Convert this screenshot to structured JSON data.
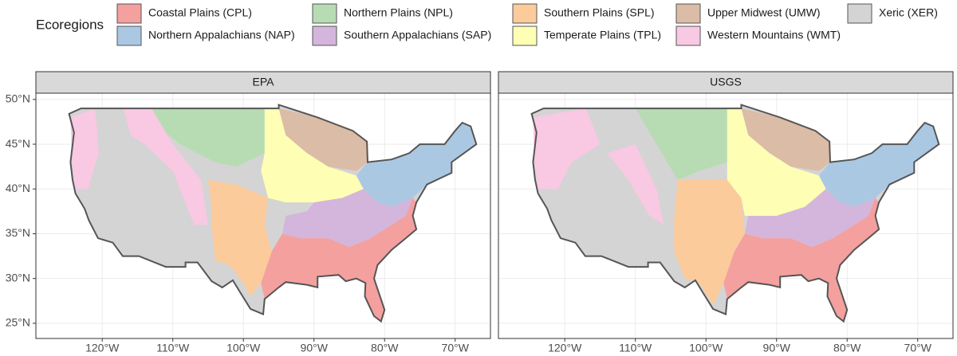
{
  "legend": {
    "title": "Ecoregions",
    "items": [
      {
        "label": "Coastal Plains (CPL)",
        "color": "#f4a09f"
      },
      {
        "label": "Northern Appalachians (NAP)",
        "color": "#abc8e3"
      },
      {
        "label": "Northern Plains (NPL)",
        "color": "#b7dcb3"
      },
      {
        "label": "Southern Appalachians (SAP)",
        "color": "#d4b5dc"
      },
      {
        "label": "Southern Plains (SPL)",
        "color": "#fccb9b"
      },
      {
        "label": "Temperate Plains (TPL)",
        "color": "#fefeb4"
      },
      {
        "label": "Upper Midwest (UMW)",
        "color": "#dbbca7"
      },
      {
        "label": "Western Mountains (WMT)",
        "color": "#f9c8e3"
      },
      {
        "label": "Xeric (XER)",
        "color": "#d4d4d4"
      }
    ]
  },
  "panels": [
    {
      "title": "EPA"
    },
    {
      "title": "USGS"
    }
  ],
  "axes": {
    "xlim": [
      -129.4,
      -65
    ],
    "ylim": [
      23.3,
      50.7
    ],
    "xticks": [
      {
        "value": -120,
        "label": "120°W"
      },
      {
        "value": -110,
        "label": "110°W"
      },
      {
        "value": -100,
        "label": "100°W"
      },
      {
        "value": -90,
        "label": "90°W"
      },
      {
        "value": -80,
        "label": "80°W"
      },
      {
        "value": -70,
        "label": "70°W"
      }
    ],
    "yticks": [
      {
        "value": 25,
        "label": "25°N"
      },
      {
        "value": 30,
        "label": "30°N"
      },
      {
        "value": 35,
        "label": "35°N"
      },
      {
        "value": 40,
        "label": "40°N"
      },
      {
        "value": 45,
        "label": "45°N"
      },
      {
        "value": 50,
        "label": "50°N"
      }
    ]
  }
}
